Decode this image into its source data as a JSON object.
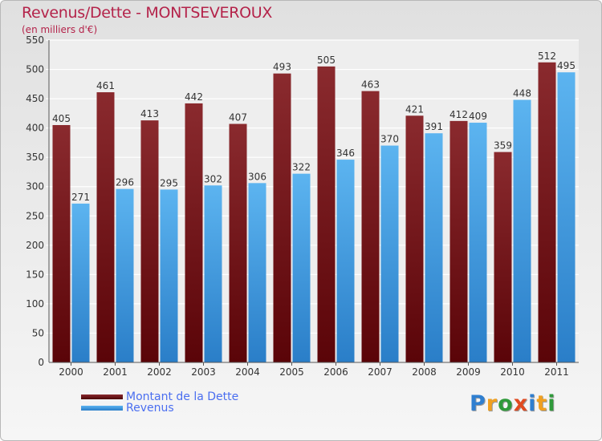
{
  "header": {
    "title": "Revenus/Dette - MONTSEVEROUX",
    "subtitle": "(en milliers d'€)"
  },
  "colors": {
    "debt": "#7a1a1e",
    "revenue": "#4ea6e6",
    "title": "#b4234a",
    "legend_text": "#4a6ef0"
  },
  "logo": {
    "text": "Proxiti",
    "letters": [
      {
        "ch": "P",
        "color": "#2f7fd0"
      },
      {
        "ch": "r",
        "color": "#f0a020"
      },
      {
        "ch": "o",
        "color": "#2f9a3a"
      },
      {
        "ch": "x",
        "color": "#e04a20"
      },
      {
        "ch": "i",
        "color": "#2f7fd0"
      },
      {
        "ch": "t",
        "color": "#f0a020"
      },
      {
        "ch": "i",
        "color": "#2f9a3a"
      }
    ]
  },
  "chart_data": {
    "type": "bar",
    "title": "Revenus/Dette - MONTSEVEROUX",
    "subtitle": "(en milliers d'€)",
    "xlabel": "",
    "ylabel": "",
    "categories": [
      "2000",
      "2001",
      "2002",
      "2003",
      "2004",
      "2005",
      "2006",
      "2007",
      "2008",
      "2009",
      "2010",
      "2011"
    ],
    "series": [
      {
        "name": "Montant de la Dette",
        "color": "#7a1a1e",
        "values": [
          405,
          461,
          413,
          442,
          407,
          493,
          505,
          463,
          421,
          412,
          359,
          512
        ]
      },
      {
        "name": "Revenus",
        "color": "#4ea6e6",
        "values": [
          271,
          296,
          295,
          302,
          306,
          322,
          346,
          370,
          391,
          409,
          448,
          495
        ]
      }
    ],
    "ylim": [
      0,
      550
    ],
    "yticks": [
      0,
      50,
      100,
      150,
      200,
      250,
      300,
      350,
      400,
      450,
      500,
      550
    ],
    "grid": true,
    "legend": "bottom-left",
    "data_labels": true
  }
}
